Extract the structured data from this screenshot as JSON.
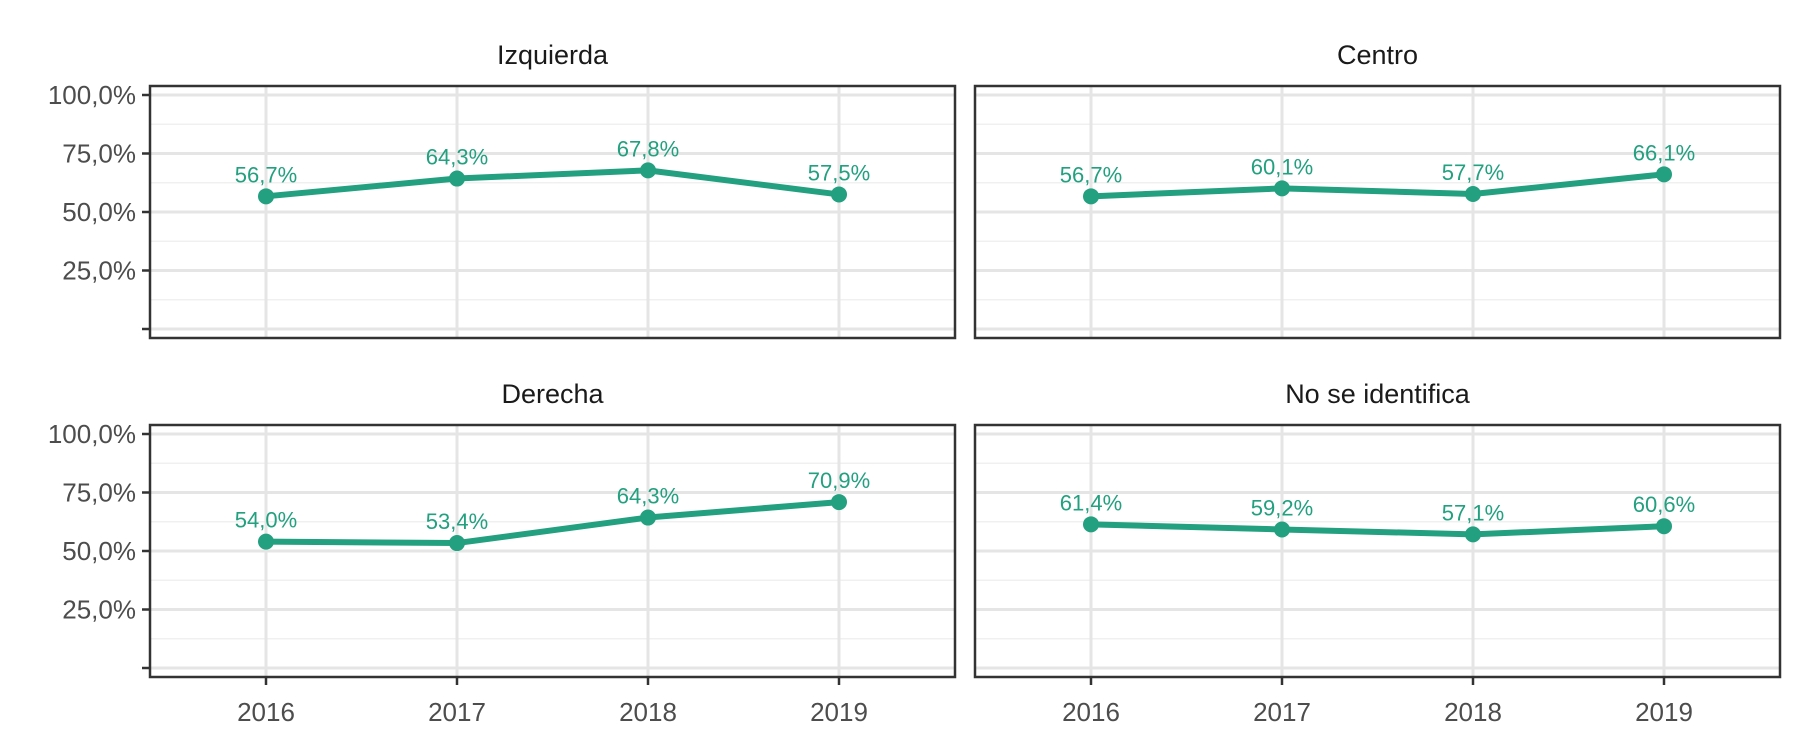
{
  "chart_data": {
    "type": "line",
    "facet_layout": "2x2",
    "x": [
      "2016",
      "2017",
      "2018",
      "2019"
    ],
    "y_ticks": [
      "25,0%",
      "50,0%",
      "75,0%",
      "100,0%"
    ],
    "y_tick_values": [
      25,
      50,
      75,
      100
    ],
    "ylim": [
      0,
      100
    ],
    "grid": true,
    "line_color": "#22A07F",
    "panels": [
      {
        "title": "Izquierda",
        "values": [
          56.7,
          64.3,
          67.8,
          57.5
        ],
        "labels": [
          "56,7%",
          "64,3%",
          "67,8%",
          "57,5%"
        ]
      },
      {
        "title": "Centro",
        "values": [
          56.7,
          60.1,
          57.7,
          66.1
        ],
        "labels": [
          "56,7%",
          "60,1%",
          "57,7%",
          "66,1%"
        ]
      },
      {
        "title": "Derecha",
        "values": [
          54.0,
          53.4,
          64.3,
          70.9
        ],
        "labels": [
          "54,0%",
          "53,4%",
          "64,3%",
          "70,9%"
        ]
      },
      {
        "title": "No se identifica",
        "values": [
          61.4,
          59.2,
          57.1,
          60.6
        ],
        "labels": [
          "61,4%",
          "59,2%",
          "57,1%",
          "60,6%"
        ]
      }
    ]
  }
}
